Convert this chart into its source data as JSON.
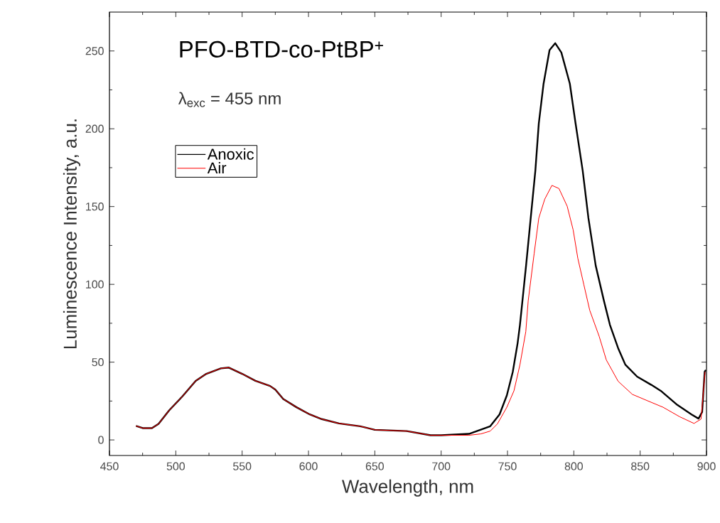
{
  "chart_data": {
    "type": "line",
    "title": "PFO-BTD-co-PtBP$^{+}$",
    "annotations": [
      "λ$_{exc}$ = 455 nm"
    ],
    "xlabel": "Wavelength, nm",
    "ylabel": "Luminescence Intensity, a.u.",
    "xlim": [
      450,
      900
    ],
    "ylim": [
      -10,
      275
    ],
    "xticks": [
      450,
      500,
      550,
      600,
      650,
      700,
      750,
      800,
      850,
      900
    ],
    "yticks": [
      0,
      50,
      100,
      150,
      200,
      250
    ],
    "legend": "top left",
    "series": [
      {
        "name": "Anoxic",
        "color": "#000000",
        "x": [
          470,
          475,
          482,
          487,
          495,
          505,
          515,
          523,
          534,
          540,
          550,
          560,
          571,
          575,
          581,
          591,
          601,
          610,
          623,
          639,
          650,
          674,
          692,
          700,
          721,
          737,
          744,
          749.5,
          754,
          757.6,
          759.4,
          764,
          767.5,
          771,
          773.6,
          777.2,
          781.7,
          786,
          790.6,
          797,
          801.3,
          806.7,
          811,
          816.5,
          822.7,
          827.2,
          833.4,
          838.8,
          847.7,
          858.4,
          865.5,
          878,
          888.7,
          894,
          896.7,
          898.6,
          899.5
        ],
        "values": [
          9,
          7.6,
          7.6,
          10.3,
          19,
          28,
          38,
          42.5,
          46,
          46.5,
          42.5,
          38,
          34.7,
          32.4,
          26.3,
          21,
          16.4,
          13.4,
          10.6,
          8.8,
          6.5,
          5.7,
          3,
          3,
          3.9,
          8.8,
          16.4,
          28.6,
          43.8,
          62,
          74,
          112,
          142.6,
          173,
          203.5,
          229,
          250.6,
          255,
          249,
          229,
          203.5,
          173,
          142.6,
          112,
          89.4,
          74,
          59,
          48.4,
          40.7,
          35.4,
          31.6,
          22.5,
          16.4,
          13.7,
          17.9,
          43.8,
          45
        ]
      },
      {
        "name": "Air",
        "color": "#ff0000",
        "x": [
          470,
          475,
          482,
          487,
          495,
          505,
          515,
          523,
          534,
          540,
          550,
          560,
          571,
          575,
          581,
          591,
          601,
          610,
          623,
          639,
          650,
          674,
          692,
          700,
          721,
          730,
          737,
          742.4,
          749.5,
          754.9,
          759.4,
          763.8,
          765.6,
          770.1,
          773.6,
          778.1,
          783.5,
          788.8,
          795,
          799.5,
          803,
          807.5,
          812,
          819.1,
          824.5,
          833.4,
          844.1,
          856.6,
          867.3,
          879.8,
          890.6,
          895.9,
          898.9
        ],
        "values": [
          9,
          7.6,
          7.6,
          10.3,
          19,
          28,
          38,
          42.5,
          46,
          46.5,
          42.5,
          38,
          34.7,
          32.4,
          26.3,
          21,
          16.4,
          13.4,
          10.6,
          8.8,
          6.5,
          5.7,
          3,
          3,
          3,
          3.9,
          5.7,
          10.3,
          21,
          31.6,
          48.4,
          69.6,
          89.4,
          119.8,
          142.6,
          154.8,
          163.6,
          161.6,
          150.2,
          135,
          116.8,
          100,
          83.3,
          66.6,
          51.4,
          37.7,
          29.3,
          24.8,
          21,
          14.9,
          10.6,
          13.4,
          43.8
        ]
      }
    ]
  }
}
